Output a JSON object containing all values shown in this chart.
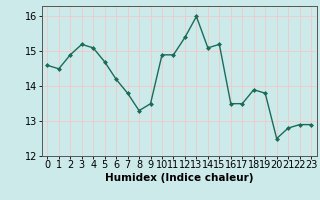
{
  "x": [
    0,
    1,
    2,
    3,
    4,
    5,
    6,
    7,
    8,
    9,
    10,
    11,
    12,
    13,
    14,
    15,
    16,
    17,
    18,
    19,
    20,
    21,
    22,
    23
  ],
  "y": [
    14.6,
    14.5,
    14.9,
    15.2,
    15.1,
    14.7,
    14.2,
    13.8,
    13.3,
    13.5,
    14.9,
    14.9,
    15.4,
    16.0,
    15.1,
    15.2,
    13.5,
    13.5,
    13.9,
    13.8,
    12.5,
    12.8,
    12.9,
    12.9
  ],
  "line_color": "#1a6b5a",
  "marker": "D",
  "marker_size": 2.0,
  "background_color": "#cceaea",
  "grid_color": "#f0c8c8",
  "xlabel": "Humidex (Indice chaleur)",
  "ylim": [
    12,
    16.3
  ],
  "yticks": [
    12,
    13,
    14,
    15,
    16
  ],
  "xticks": [
    0,
    1,
    2,
    3,
    4,
    5,
    6,
    7,
    8,
    9,
    10,
    11,
    12,
    13,
    14,
    15,
    16,
    17,
    18,
    19,
    20,
    21,
    22,
    23
  ],
  "xlabel_fontsize": 7.5,
  "tick_fontsize": 7.0,
  "linewidth": 1.0
}
